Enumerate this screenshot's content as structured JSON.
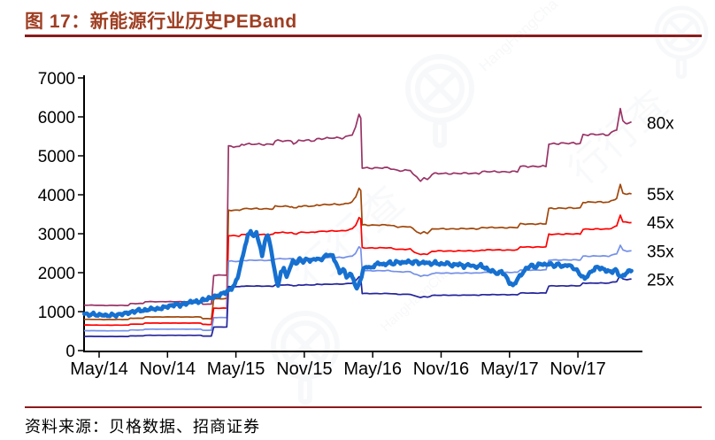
{
  "header": {
    "title": "图 17：新能源行业历史PEBand",
    "title_color": "#9E3E22",
    "rule_color": "#8B1B1B"
  },
  "footer": {
    "source_label": "资料来源：贝格数据、招商证券"
  },
  "watermark": {
    "text_cn": "行行查",
    "text_en": "HangHangCha",
    "color": "#7788AA"
  },
  "chart_data": {
    "type": "line",
    "title": "图 17：新能源行业历史PEBand",
    "xlabel": "",
    "ylabel": "",
    "grid": false,
    "legend": "none (bands labelled at right edge)",
    "x_axis": {
      "unit": "months since May 2014",
      "domain": [
        -1.32,
        47.66
      ],
      "ticks": [
        {
          "t": 0,
          "label": "May/14"
        },
        {
          "t": 6,
          "label": "Nov/14"
        },
        {
          "t": 12,
          "label": "May/15"
        },
        {
          "t": 18,
          "label": "Nov/15"
        },
        {
          "t": 24,
          "label": "May/16"
        },
        {
          "t": 30,
          "label": "Nov/16"
        },
        {
          "t": 36,
          "label": "May/17"
        },
        {
          "t": 42,
          "label": "Nov/17"
        }
      ]
    },
    "y_axis": {
      "domain": [
        0,
        7000
      ],
      "ticks": [
        0,
        1000,
        2000,
        3000,
        4000,
        5000,
        6000,
        7000
      ]
    },
    "pe_bands": {
      "description": "PE band lines; line value = earnings_base(t) × multiple",
      "multiples": [
        80,
        55,
        45,
        35,
        25
      ],
      "labels": [
        "80x",
        "55x",
        "45x",
        "35x",
        "25x"
      ],
      "colors": [
        "#993366",
        "#A0470B",
        "#FF0000",
        "#7490E8",
        "#24249C"
      ],
      "label_color": "#000000",
      "wiggle": 0.005,
      "earnings_base": [
        [
          -1.32,
          14.6
        ],
        [
          0.5,
          14.5
        ],
        [
          2.55,
          14.5
        ],
        [
          2.75,
          15.1
        ],
        [
          3.85,
          15.1
        ],
        [
          4.05,
          15.7
        ],
        [
          8.9,
          15.7
        ],
        [
          9.1,
          14.9
        ],
        [
          9.85,
          14.9
        ],
        [
          10.05,
          24.2
        ],
        [
          11.2,
          24.2
        ],
        [
          11.35,
          65.5
        ],
        [
          12.3,
          65.5
        ],
        [
          12.5,
          66.2
        ],
        [
          15.25,
          66.2
        ],
        [
          15.45,
          67.3
        ],
        [
          16.9,
          67.3
        ],
        [
          17.05,
          66.6
        ],
        [
          17.3,
          66.6
        ],
        [
          17.5,
          67.4
        ],
        [
          18.9,
          67.4
        ],
        [
          19.1,
          68.0
        ],
        [
          21.4,
          68.3
        ],
        [
          22.2,
          69.4
        ],
        [
          22.5,
          71.5
        ],
        [
          22.8,
          75.8
        ],
        [
          22.95,
          74.8
        ],
        [
          23.08,
          58.6
        ],
        [
          25.4,
          58.6
        ],
        [
          26.2,
          57.8
        ],
        [
          27.3,
          57.8
        ],
        [
          27.65,
          56.2
        ],
        [
          28.2,
          54.6
        ],
        [
          28.5,
          55.4
        ],
        [
          28.8,
          54.9
        ],
        [
          29.2,
          56.6
        ],
        [
          29.55,
          56.8
        ],
        [
          33.3,
          56.9
        ],
        [
          33.6,
          57.4
        ],
        [
          36.7,
          57.4
        ],
        [
          36.95,
          59.1
        ],
        [
          39.2,
          59.1
        ],
        [
          39.45,
          66.3
        ],
        [
          40.3,
          66.5
        ],
        [
          42.2,
          66.5
        ],
        [
          42.45,
          69.3
        ],
        [
          44.7,
          69.3
        ],
        [
          45.05,
          70.3
        ],
        [
          45.4,
          71.0
        ],
        [
          45.72,
          77.4
        ],
        [
          45.95,
          73.5
        ],
        [
          46.3,
          72.9
        ],
        [
          46.7,
          73.2
        ]
      ]
    },
    "price_series": {
      "semantic_name": "index-price-line",
      "color": "#1670D0",
      "stroke_width": 4.6,
      "wiggle": 26,
      "points": [
        [
          -1.3,
          950
        ],
        [
          -0.9,
          915
        ],
        [
          -0.5,
          940
        ],
        [
          -0.1,
          905
        ],
        [
          0.3,
          925
        ],
        [
          0.7,
          890
        ],
        [
          1.1,
          920
        ],
        [
          1.5,
          905
        ],
        [
          1.9,
          935
        ],
        [
          2.3,
          955
        ],
        [
          2.7,
          975
        ],
        [
          3.1,
          1005
        ],
        [
          3.5,
          1040
        ],
        [
          3.9,
          1020
        ],
        [
          4.3,
          1055
        ],
        [
          4.7,
          1080
        ],
        [
          5.1,
          1060
        ],
        [
          5.5,
          1095
        ],
        [
          5.9,
          1125
        ],
        [
          6.3,
          1150
        ],
        [
          6.7,
          1185
        ],
        [
          7.1,
          1165
        ],
        [
          7.5,
          1200
        ],
        [
          7.9,
          1235
        ],
        [
          8.3,
          1265
        ],
        [
          8.7,
          1245
        ],
        [
          9.1,
          1295
        ],
        [
          9.5,
          1330
        ],
        [
          9.9,
          1360
        ],
        [
          10.3,
          1400
        ],
        [
          10.7,
          1445
        ],
        [
          11.1,
          1500
        ],
        [
          11.5,
          1560
        ],
        [
          11.9,
          1690
        ],
        [
          12.2,
          1940
        ],
        [
          12.5,
          2290
        ],
        [
          12.8,
          2690
        ],
        [
          13.05,
          2940
        ],
        [
          13.3,
          3080
        ],
        [
          13.55,
          2910
        ],
        [
          13.8,
          3050
        ],
        [
          14.05,
          2740
        ],
        [
          14.3,
          2420
        ],
        [
          14.55,
          2840
        ],
        [
          14.8,
          2950
        ],
        [
          15.05,
          2690
        ],
        [
          15.25,
          2260
        ],
        [
          15.5,
          1890
        ],
        [
          15.7,
          1660
        ],
        [
          15.95,
          1990
        ],
        [
          16.2,
          2140
        ],
        [
          16.45,
          1860
        ],
        [
          16.7,
          2110
        ],
        [
          17.0,
          2290
        ],
        [
          17.3,
          2240
        ],
        [
          17.6,
          2340
        ],
        [
          17.9,
          2280
        ],
        [
          18.25,
          2350
        ],
        [
          18.6,
          2300
        ],
        [
          19.0,
          2370
        ],
        [
          19.4,
          2320
        ],
        [
          19.8,
          2420
        ],
        [
          20.15,
          2470
        ],
        [
          20.5,
          2420
        ],
        [
          20.8,
          2240
        ],
        [
          21.1,
          1990
        ],
        [
          21.4,
          2110
        ],
        [
          21.7,
          1890
        ],
        [
          22.0,
          1970
        ],
        [
          22.3,
          1850
        ],
        [
          22.6,
          1560
        ],
        [
          22.9,
          1800
        ],
        [
          23.2,
          2090
        ],
        [
          23.5,
          2170
        ],
        [
          23.85,
          2110
        ],
        [
          24.2,
          2200
        ],
        [
          24.6,
          2250
        ],
        [
          25.0,
          2190
        ],
        [
          25.4,
          2270
        ],
        [
          25.8,
          2220
        ],
        [
          26.2,
          2290
        ],
        [
          26.6,
          2240
        ],
        [
          27.0,
          2300
        ],
        [
          27.4,
          2250
        ],
        [
          27.8,
          2290
        ],
        [
          28.2,
          2230
        ],
        [
          28.6,
          2280
        ],
        [
          29.0,
          2220
        ],
        [
          29.5,
          2260
        ],
        [
          30.0,
          2210
        ],
        [
          30.5,
          2250
        ],
        [
          31.0,
          2180
        ],
        [
          31.5,
          2230
        ],
        [
          32.0,
          2160
        ],
        [
          32.5,
          2210
        ],
        [
          33.0,
          2140
        ],
        [
          33.5,
          2190
        ],
        [
          34.0,
          2090
        ],
        [
          34.5,
          2040
        ],
        [
          35.0,
          1970
        ],
        [
          35.3,
          2040
        ],
        [
          35.7,
          1890
        ],
        [
          36.0,
          1750
        ],
        [
          36.3,
          1660
        ],
        [
          36.6,
          1790
        ],
        [
          36.9,
          1910
        ],
        [
          37.2,
          2010
        ],
        [
          37.5,
          2110
        ],
        [
          37.9,
          2190
        ],
        [
          38.3,
          2140
        ],
        [
          38.7,
          2240
        ],
        [
          39.1,
          2190
        ],
        [
          39.5,
          2240
        ],
        [
          39.9,
          2170
        ],
        [
          40.3,
          2220
        ],
        [
          40.7,
          2150
        ],
        [
          41.1,
          2210
        ],
        [
          41.5,
          2140
        ],
        [
          41.9,
          2060
        ],
        [
          42.3,
          1920
        ],
        [
          42.6,
          1850
        ],
        [
          42.95,
          1960
        ],
        [
          43.3,
          2060
        ],
        [
          43.7,
          2150
        ],
        [
          44.1,
          2100
        ],
        [
          44.5,
          2060
        ],
        [
          44.9,
          2010
        ],
        [
          45.3,
          2080
        ],
        [
          45.6,
          1950
        ],
        [
          45.85,
          1880
        ],
        [
          46.1,
          1960
        ],
        [
          46.4,
          2030
        ],
        [
          46.7,
          2060
        ]
      ]
    }
  }
}
